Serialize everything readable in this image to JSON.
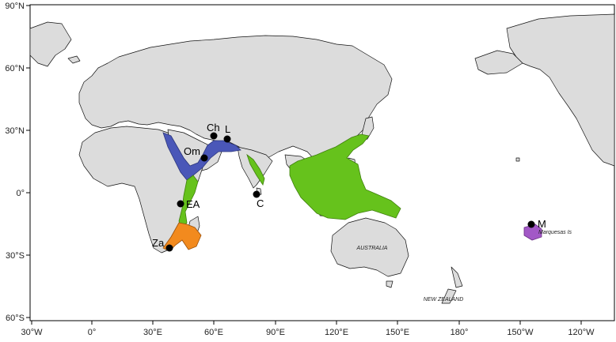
{
  "axes": {
    "lat_labels": [
      "90°N",
      "60°N",
      "30°N",
      "0°",
      "30°S",
      "60°S"
    ],
    "lon_labels": [
      "30°W",
      "0°",
      "30°E",
      "60°E",
      "90°E",
      "120°E",
      "150°E",
      "180°",
      "150°W",
      "120°W"
    ]
  },
  "sites": [
    {
      "code": "Ch"
    },
    {
      "code": "L"
    },
    {
      "code": "Om"
    },
    {
      "code": "C"
    },
    {
      "code": "EA"
    },
    {
      "code": "Za"
    },
    {
      "code": "M"
    }
  ],
  "region_labels": {
    "australia": "AUSTRALIA",
    "new_zealand": "NEW ZEALAND",
    "marquesas": "Marquesas Is"
  },
  "colors": {
    "land": "#dcdcdc",
    "coast": "#111111",
    "red_sea_arabian": "#4a57b8",
    "indo_pacific": "#66c21c",
    "south_africa_madagascar": "#f28a1e",
    "marquesas": "#a258c6",
    "site_marker": "#000000"
  }
}
